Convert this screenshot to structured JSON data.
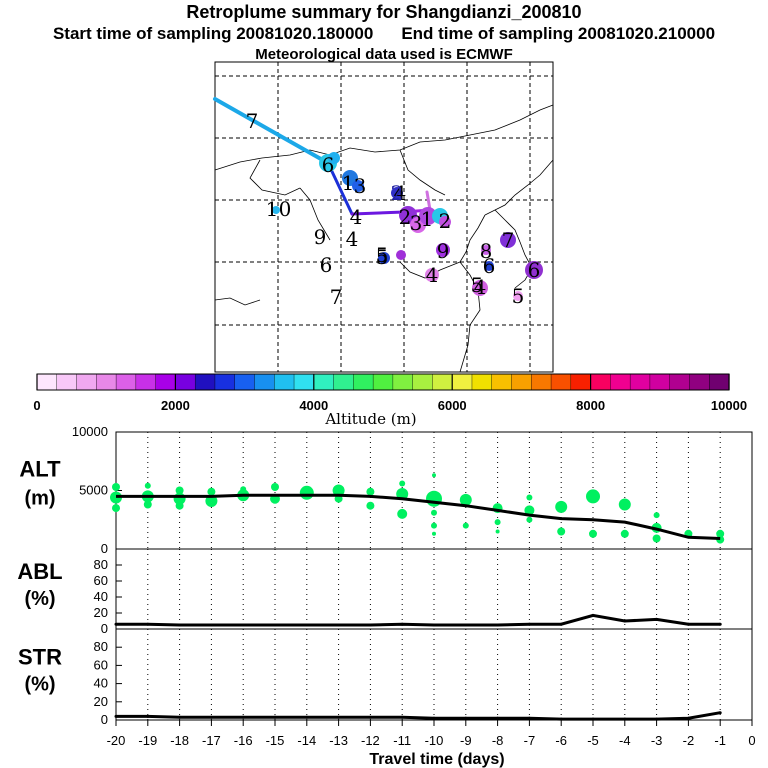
{
  "title": {
    "line1": "Retroplume summary for Shangdianzi_200810",
    "start": "Start time of sampling 20081020.180000",
    "end": "End time of sampling 20081020.210000",
    "line3": "Meteorological data used is ECMWF"
  },
  "colorbar": {
    "ticks": [
      "0",
      "2000",
      "4000",
      "6000",
      "8000",
      "10000"
    ],
    "label": "Altitude (m)",
    "colors": [
      "#fde6fd",
      "#f8c8f8",
      "#f0a8f0",
      "#e888e8",
      "#dc60e8",
      "#c830e8",
      "#a800e8",
      "#7800e0",
      "#2010c0",
      "#1830e0",
      "#1860f0",
      "#1890f0",
      "#20c0f0",
      "#30e0f0",
      "#30f0c0",
      "#30f090",
      "#30f060",
      "#50f040",
      "#80f040",
      "#a8f040",
      "#d0f040",
      "#f0f040",
      "#f0e000",
      "#f8c000",
      "#f8a000",
      "#f87800",
      "#f85000",
      "#f82000",
      "#f80060",
      "#f00090",
      "#e000a0",
      "#d000a0",
      "#b00090",
      "#900080",
      "#700070"
    ]
  },
  "map": {
    "labels": [
      {
        "t": "7",
        "c": "#000000"
      },
      {
        "t": "6",
        "c": "#000000"
      },
      {
        "t": "1",
        "c": "#000000"
      },
      {
        "t": "3",
        "c": "#000000"
      },
      {
        "t": "1",
        "c": "#000000"
      },
      {
        "t": "0",
        "c": "#000000"
      },
      {
        "t": "4",
        "c": "#000000"
      },
      {
        "t": "9",
        "c": "#000000"
      },
      {
        "t": "4",
        "c": "#000000"
      },
      {
        "t": "6",
        "c": "#000000"
      },
      {
        "t": "7",
        "c": "#000000"
      },
      {
        "t": "5",
        "c": "#000000"
      },
      {
        "t": "4",
        "c": "#000000"
      },
      {
        "t": "2",
        "c": "#2020a0"
      },
      {
        "t": "2",
        "c": "#000000"
      },
      {
        "t": "3",
        "c": "#000000"
      },
      {
        "t": "1",
        "c": "#000000"
      },
      {
        "t": "2",
        "c": "#000000"
      },
      {
        "t": "5",
        "c": "#000000"
      },
      {
        "t": "9",
        "c": "#000000"
      },
      {
        "t": "4",
        "c": "#000000"
      },
      {
        "t": "8",
        "c": "#000000"
      },
      {
        "t": "6",
        "c": "#000000"
      },
      {
        "t": "7",
        "c": "#000000"
      },
      {
        "t": "6",
        "c": "#000000"
      },
      {
        "t": "4",
        "c": "#000000"
      },
      {
        "t": "5",
        "c": "#000000"
      },
      {
        "t": "5",
        "c": "#000000"
      }
    ]
  },
  "chart_data": [
    {
      "type": "scatter",
      "name": "ALT",
      "ylabel": "ALT\n(m)",
      "ylabel_line1": "ALT",
      "ylabel_line2": "(m)",
      "ylim": [
        0,
        10000
      ],
      "yticks": [
        "0",
        "5000",
        "10000"
      ],
      "x": [
        -20,
        -19,
        -18,
        -17,
        -16,
        -15,
        -14,
        -13,
        -12,
        -11,
        -10,
        -9,
        -8,
        -7,
        -6,
        -5,
        -4,
        -3,
        -2,
        -1
      ],
      "mean_line": [
        4500,
        4500,
        4500,
        4500,
        4600,
        4600,
        4600,
        4600,
        4500,
        4300,
        4000,
        3700,
        3300,
        2900,
        2600,
        2500,
        2300,
        1700,
        1000,
        900
      ],
      "points": [
        {
          "x": -20,
          "y": 5300,
          "s": 4
        },
        {
          "x": -20,
          "y": 4400,
          "s": 6
        },
        {
          "x": -20,
          "y": 3500,
          "s": 4
        },
        {
          "x": -19,
          "y": 5400,
          "s": 3
        },
        {
          "x": -19,
          "y": 4500,
          "s": 6
        },
        {
          "x": -19,
          "y": 3800,
          "s": 4
        },
        {
          "x": -18,
          "y": 5000,
          "s": 4
        },
        {
          "x": -18,
          "y": 4300,
          "s": 6
        },
        {
          "x": -18,
          "y": 3700,
          "s": 4
        },
        {
          "x": -17,
          "y": 4900,
          "s": 4
        },
        {
          "x": -17,
          "y": 4100,
          "s": 6
        },
        {
          "x": -16,
          "y": 5100,
          "s": 3
        },
        {
          "x": -16,
          "y": 4600,
          "s": 6
        },
        {
          "x": -15,
          "y": 5300,
          "s": 4
        },
        {
          "x": -15,
          "y": 4300,
          "s": 5
        },
        {
          "x": -14,
          "y": 4800,
          "s": 7
        },
        {
          "x": -13,
          "y": 5000,
          "s": 6
        },
        {
          "x": -13,
          "y": 4300,
          "s": 4
        },
        {
          "x": -12,
          "y": 4900,
          "s": 4
        },
        {
          "x": -12,
          "y": 3700,
          "s": 4
        },
        {
          "x": -11,
          "y": 5600,
          "s": 3
        },
        {
          "x": -11,
          "y": 4700,
          "s": 6
        },
        {
          "x": -11,
          "y": 3000,
          "s": 5
        },
        {
          "x": -10,
          "y": 6300,
          "s": 2
        },
        {
          "x": -10,
          "y": 4300,
          "s": 8
        },
        {
          "x": -10,
          "y": 3100,
          "s": 3
        },
        {
          "x": -10,
          "y": 2000,
          "s": 3
        },
        {
          "x": -10,
          "y": 1300,
          "s": 2
        },
        {
          "x": -9,
          "y": 4200,
          "s": 6
        },
        {
          "x": -9,
          "y": 2000,
          "s": 3
        },
        {
          "x": -8,
          "y": 3500,
          "s": 5
        },
        {
          "x": -8,
          "y": 2300,
          "s": 3
        },
        {
          "x": -8,
          "y": 1500,
          "s": 2
        },
        {
          "x": -7,
          "y": 4400,
          "s": 3
        },
        {
          "x": -7,
          "y": 3300,
          "s": 5
        },
        {
          "x": -7,
          "y": 2500,
          "s": 3
        },
        {
          "x": -6,
          "y": 3600,
          "s": 6
        },
        {
          "x": -6,
          "y": 1500,
          "s": 4
        },
        {
          "x": -5,
          "y": 4500,
          "s": 7
        },
        {
          "x": -5,
          "y": 1300,
          "s": 4
        },
        {
          "x": -4,
          "y": 3800,
          "s": 6
        },
        {
          "x": -4,
          "y": 1300,
          "s": 4
        },
        {
          "x": -3,
          "y": 2900,
          "s": 3
        },
        {
          "x": -3,
          "y": 1800,
          "s": 5
        },
        {
          "x": -3,
          "y": 900,
          "s": 4
        },
        {
          "x": -2,
          "y": 1300,
          "s": 4
        },
        {
          "x": -1,
          "y": 1300,
          "s": 4
        },
        {
          "x": -1,
          "y": 800,
          "s": 4
        }
      ],
      "point_color": "#00f060"
    },
    {
      "type": "line",
      "name": "ABL",
      "ylabel_line1": "ABL",
      "ylabel_line2": "(%)",
      "ylim": [
        0,
        100
      ],
      "yticks": [
        "0",
        "20",
        "40",
        "60",
        "80"
      ],
      "x": [
        -20,
        -19,
        -18,
        -17,
        -16,
        -15,
        -14,
        -13,
        -12,
        -11,
        -10,
        -9,
        -8,
        -7,
        -6,
        -5,
        -4,
        -3,
        -2,
        -1
      ],
      "values": [
        6,
        6,
        5,
        5,
        5,
        5,
        5,
        5,
        5,
        6,
        5,
        5,
        5,
        6,
        6,
        17,
        10,
        12,
        6,
        6
      ]
    },
    {
      "type": "line",
      "name": "STR",
      "ylabel_line1": "STR",
      "ylabel_line2": "(%)",
      "ylim": [
        0,
        100
      ],
      "yticks": [
        "0",
        "20",
        "40",
        "60",
        "80"
      ],
      "x": [
        -20,
        -19,
        -18,
        -17,
        -16,
        -15,
        -14,
        -13,
        -12,
        -11,
        -10,
        -9,
        -8,
        -7,
        -6,
        -5,
        -4,
        -3,
        -2,
        -1
      ],
      "values": [
        4,
        4,
        3,
        3,
        3,
        3,
        3,
        3,
        3,
        3,
        2,
        2,
        2,
        2,
        1,
        1,
        1,
        1,
        2,
        8
      ]
    }
  ],
  "xaxis": {
    "ticks": [
      "-20",
      "-19",
      "-18",
      "-17",
      "-16",
      "-15",
      "-14",
      "-13",
      "-12",
      "-11",
      "-10",
      "-9",
      "-8",
      "-7",
      "-6",
      "-5",
      "-4",
      "-3",
      "-2",
      "-1",
      "0"
    ],
    "label": "Travel time (days)"
  }
}
